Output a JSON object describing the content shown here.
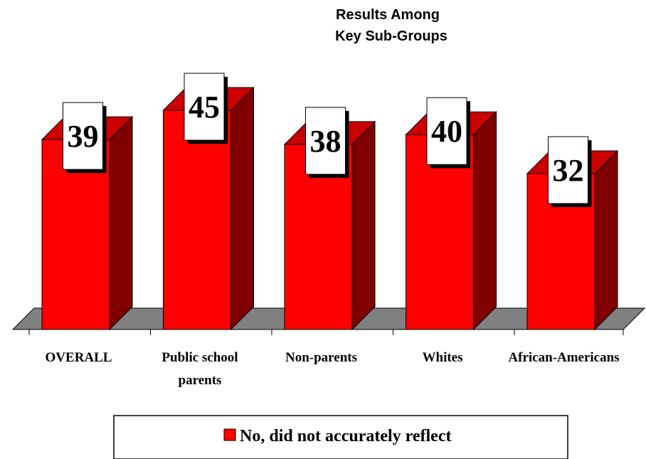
{
  "chart_data": {
    "type": "bar",
    "title": "Results Among Key Sub-Groups",
    "title_lines": [
      "Results Among",
      "Key Sub-Groups"
    ],
    "categories": [
      "OVERALL",
      "Public school parents",
      "Non-parents",
      "Whites",
      "African-Americans"
    ],
    "category_lines": [
      [
        "OVERALL"
      ],
      [
        "Public school",
        "parents"
      ],
      [
        "Non-parents"
      ],
      [
        "Whites"
      ],
      [
        "African-Americans"
      ]
    ],
    "series": [
      {
        "name": "No, did not accurately reflect",
        "values": [
          39,
          45,
          38,
          40,
          32
        ]
      }
    ],
    "ylim": [
      0,
      60
    ],
    "grid": false,
    "legend": "bottom",
    "colors": {
      "bar_front": "#ff0000",
      "bar_top": "#cc0000",
      "bar_side": "#800000",
      "floor": "#808080",
      "label_box": "#ffffff",
      "label_shadow": "#000000"
    }
  }
}
